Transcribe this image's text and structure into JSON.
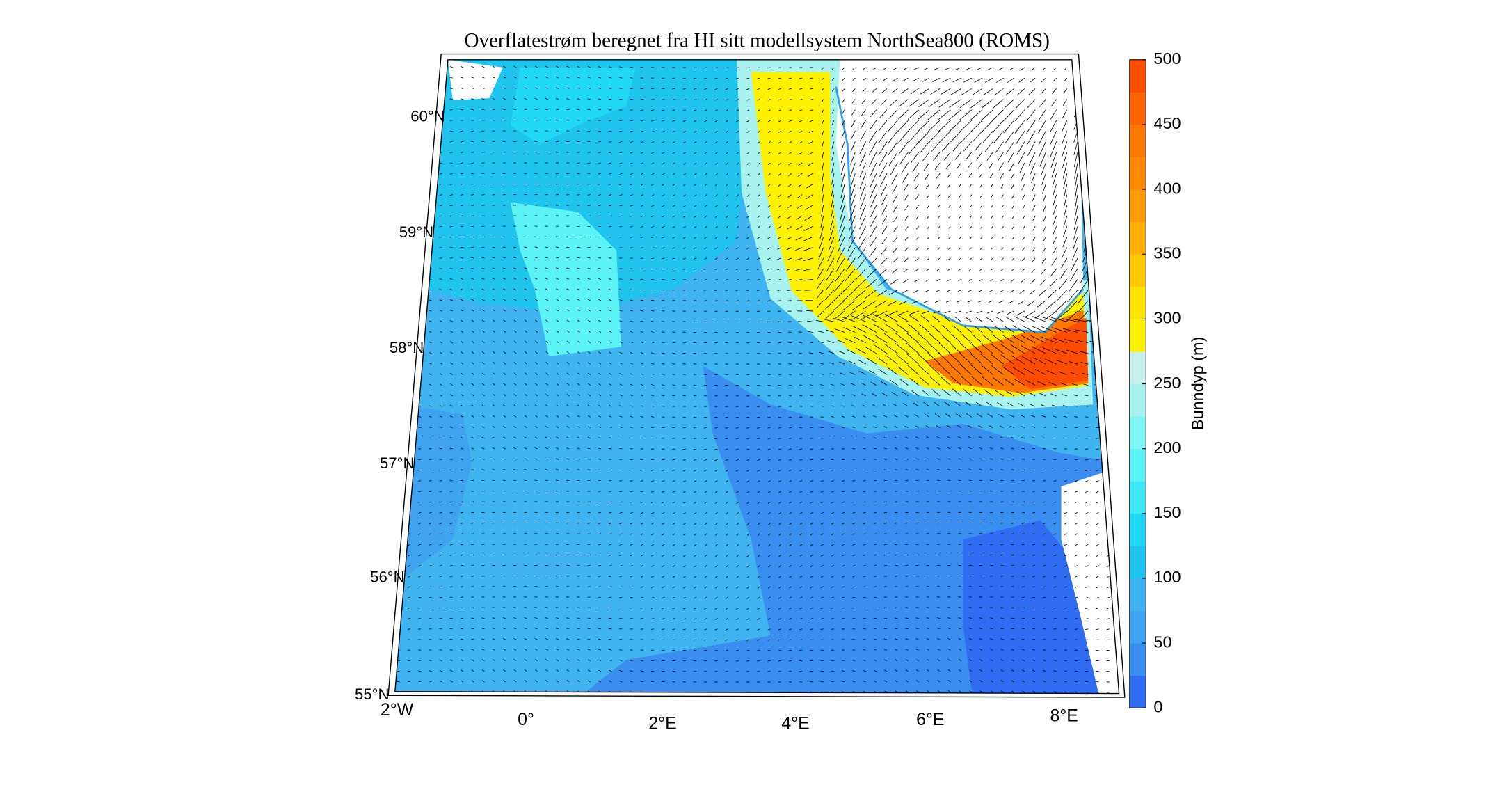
{
  "title": "Overflatestrøm beregnet fra HI sitt modellsystem NorthSea800 (ROMS)",
  "map": {
    "latitude_labels": [
      "60°N",
      "59°N",
      "58°N",
      "57°N",
      "56°N",
      "55°N"
    ],
    "longitude_labels": [
      "2°W",
      "0°",
      "2°E",
      "4°E",
      "6°E",
      "8°E"
    ]
  },
  "colorbar": {
    "label": "Bunndyp (m)",
    "lim": [
      0,
      500
    ],
    "ticks": [
      0,
      50,
      100,
      150,
      200,
      250,
      300,
      350,
      400,
      450,
      500
    ],
    "colors": [
      "#2f6cf2",
      "#3a8ef0",
      "#3fa3f0",
      "#3fb4f0",
      "#1fc4ef",
      "#22d9f5",
      "#3ee8f5",
      "#5cf3f7",
      "#80f5f5",
      "#a8f2f0",
      "#c8f0ec",
      "#fff200",
      "#ffe400",
      "#ffc800",
      "#ffb000",
      "#ff9d00",
      "#ff8a00",
      "#ff7800",
      "#ff6400",
      "#ff4d00"
    ]
  }
}
